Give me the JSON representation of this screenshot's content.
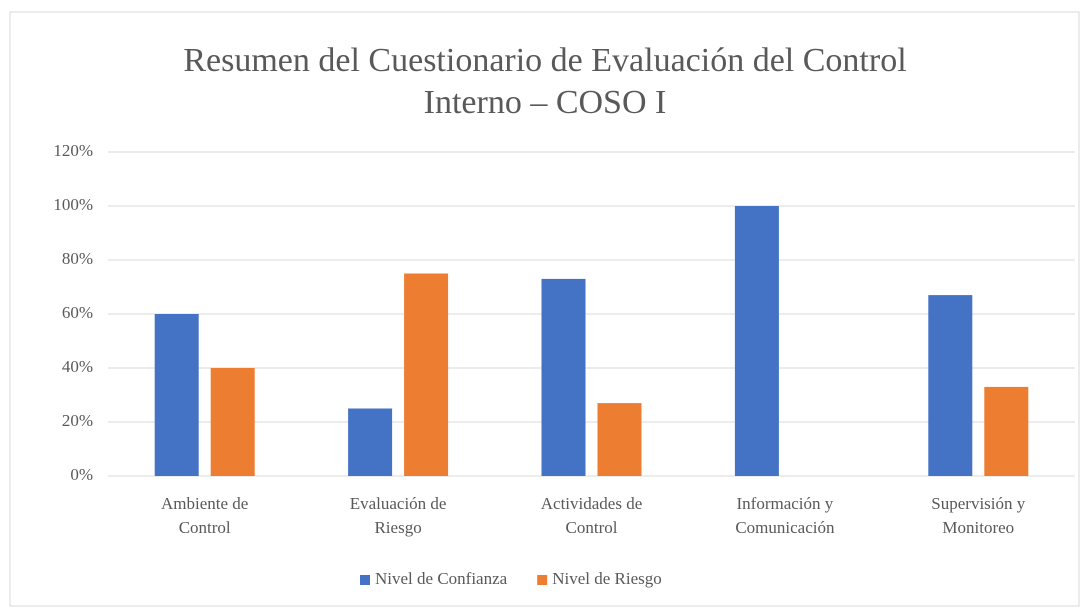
{
  "chart_data": {
    "type": "bar",
    "title": "Resumen del Cuestionario de Evaluación del Control Interno – COSO I",
    "categories": [
      "Ambiente de Control",
      "Evaluación de Riesgo",
      "Actividades de Control",
      "Información y Comunicación",
      "Supervisión y Monitoreo"
    ],
    "series": [
      {
        "name": "Nivel de Confianza",
        "color": "#4472c4",
        "values": [
          60,
          25,
          73,
          100,
          67
        ]
      },
      {
        "name": "Nivel de Riesgo",
        "color": "#ed7d31",
        "values": [
          40,
          75,
          27,
          0,
          33
        ]
      }
    ],
    "ylim": [
      0,
      120
    ],
    "yticks": [
      {
        "value": 0,
        "label": "0%"
      },
      {
        "value": 20,
        "label": "20%"
      },
      {
        "value": 40,
        "label": "40%"
      },
      {
        "value": 60,
        "label": "60%"
      },
      {
        "value": 80,
        "label": "80%"
      },
      {
        "value": 100,
        "label": "100%"
      },
      {
        "value": 120,
        "label": "120%"
      }
    ],
    "grid": true,
    "legend": "bottom"
  }
}
